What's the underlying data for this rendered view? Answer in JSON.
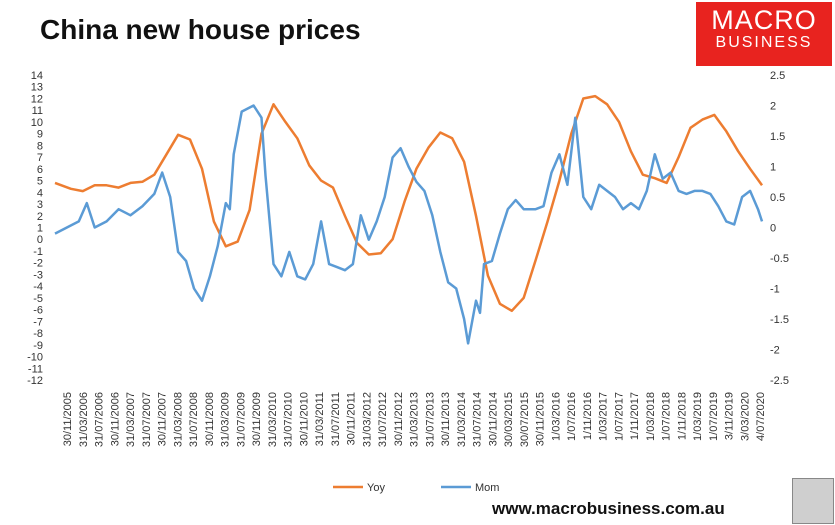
{
  "header": {
    "title": "China new house prices"
  },
  "logo": {
    "line1": "MACRO",
    "line2": "BUSINESS"
  },
  "footer": {
    "url": "www.macrobusiness.com.au"
  },
  "colors": {
    "yoy": "#ed7d31",
    "mom": "#5b9bd5"
  },
  "chart_data": {
    "type": "line",
    "title": "China new house prices",
    "legend_position": "bottom",
    "y_left": {
      "min": -12,
      "max": 14,
      "step": 1
    },
    "y_right": {
      "min": -2.5,
      "max": 2.5,
      "step": 0.5
    },
    "x_tick_labels": [
      "30/11/2005",
      "31/03/2006",
      "31/07/2006",
      "30/11/2006",
      "31/03/2007",
      "31/07/2007",
      "30/11/2007",
      "31/03/2008",
      "31/07/2008",
      "30/11/2008",
      "31/03/2009",
      "31/07/2009",
      "30/11/2009",
      "31/03/2010",
      "31/07/2010",
      "30/11/2010",
      "31/03/2011",
      "31/07/2011",
      "30/11/2011",
      "31/03/2012",
      "31/07/2012",
      "30/11/2012",
      "31/03/2013",
      "31/07/2013",
      "30/11/2013",
      "31/03/2014",
      "31/07/2014",
      "30/11/2014",
      "30/03/2015",
      "30/07/2015",
      "30/11/2015",
      "1/03/2016",
      "1/07/2016",
      "1/11/2016",
      "1/03/2017",
      "1/07/2017",
      "1/11/2017",
      "1/03/2018",
      "1/07/2018",
      "1/11/2018",
      "1/03/2019",
      "1/07/2019",
      "3/11/2019",
      "3/03/2020",
      "4/07/2020"
    ],
    "x_range": [
      "2005-11",
      "2020-09"
    ],
    "series": [
      {
        "name": "Yoy",
        "axis": "left",
        "points": [
          [
            "2005-11",
            4.8
          ],
          [
            "2006-03",
            4.3
          ],
          [
            "2006-06",
            4.1
          ],
          [
            "2006-09",
            4.6
          ],
          [
            "2006-12",
            4.6
          ],
          [
            "2007-03",
            4.4
          ],
          [
            "2007-06",
            4.8
          ],
          [
            "2007-09",
            4.9
          ],
          [
            "2007-12",
            5.5
          ],
          [
            "2008-03",
            7.2
          ],
          [
            "2008-06",
            8.9
          ],
          [
            "2008-09",
            8.5
          ],
          [
            "2008-12",
            6.0
          ],
          [
            "2009-03",
            1.5
          ],
          [
            "2009-06",
            -0.6
          ],
          [
            "2009-09",
            -0.2
          ],
          [
            "2009-12",
            2.5
          ],
          [
            "2010-03",
            9.0
          ],
          [
            "2010-06",
            11.5
          ],
          [
            "2010-09",
            10.0
          ],
          [
            "2010-12",
            8.6
          ],
          [
            "2011-03",
            6.3
          ],
          [
            "2011-06",
            5.0
          ],
          [
            "2011-09",
            4.4
          ],
          [
            "2011-12",
            2.0
          ],
          [
            "2012-03",
            -0.3
          ],
          [
            "2012-06",
            -1.3
          ],
          [
            "2012-09",
            -1.2
          ],
          [
            "2012-12",
            0.0
          ],
          [
            "2013-03",
            3.2
          ],
          [
            "2013-06",
            6.0
          ],
          [
            "2013-09",
            7.8
          ],
          [
            "2013-12",
            9.1
          ],
          [
            "2014-03",
            8.6
          ],
          [
            "2014-06",
            6.6
          ],
          [
            "2014-09",
            2.0
          ],
          [
            "2014-12",
            -3.1
          ],
          [
            "2015-03",
            -5.5
          ],
          [
            "2015-06",
            -6.1
          ],
          [
            "2015-09",
            -5.0
          ],
          [
            "2015-12",
            -1.8
          ],
          [
            "2016-03",
            1.5
          ],
          [
            "2016-06",
            5.0
          ],
          [
            "2016-09",
            9.0
          ],
          [
            "2016-12",
            12.0
          ],
          [
            "2017-03",
            12.2
          ],
          [
            "2017-06",
            11.5
          ],
          [
            "2017-09",
            10.0
          ],
          [
            "2017-12",
            7.5
          ],
          [
            "2018-03",
            5.5
          ],
          [
            "2018-06",
            5.2
          ],
          [
            "2018-09",
            4.8
          ],
          [
            "2018-12",
            7.0
          ],
          [
            "2019-03",
            9.5
          ],
          [
            "2019-06",
            10.2
          ],
          [
            "2019-09",
            10.6
          ],
          [
            "2019-12",
            9.2
          ],
          [
            "2020-03",
            7.5
          ],
          [
            "2020-06",
            6.0
          ],
          [
            "2020-09",
            4.6
          ]
        ]
      },
      {
        "name": "Mom",
        "axis": "right",
        "points": [
          [
            "2005-11",
            -0.1
          ],
          [
            "2006-02",
            0.0
          ],
          [
            "2006-05",
            0.1
          ],
          [
            "2006-07",
            0.4
          ],
          [
            "2006-09",
            0.0
          ],
          [
            "2006-12",
            0.1
          ],
          [
            "2007-03",
            0.3
          ],
          [
            "2007-06",
            0.2
          ],
          [
            "2007-09",
            0.35
          ],
          [
            "2007-12",
            0.55
          ],
          [
            "2008-02",
            0.9
          ],
          [
            "2008-04",
            0.5
          ],
          [
            "2008-06",
            -0.4
          ],
          [
            "2008-08",
            -0.55
          ],
          [
            "2008-10",
            -1.0
          ],
          [
            "2008-12",
            -1.2
          ],
          [
            "2009-02",
            -0.8
          ],
          [
            "2009-04",
            -0.3
          ],
          [
            "2009-06",
            0.4
          ],
          [
            "2009-07",
            0.3
          ],
          [
            "2009-08",
            1.2
          ],
          [
            "2009-10",
            1.9
          ],
          [
            "2010-01",
            2.0
          ],
          [
            "2010-03",
            1.8
          ],
          [
            "2010-04",
            0.85
          ],
          [
            "2010-06",
            -0.6
          ],
          [
            "2010-08",
            -0.8
          ],
          [
            "2010-10",
            -0.4
          ],
          [
            "2010-12",
            -0.8
          ],
          [
            "2011-02",
            -0.85
          ],
          [
            "2011-04",
            -0.6
          ],
          [
            "2011-06",
            0.1
          ],
          [
            "2011-08",
            -0.6
          ],
          [
            "2011-10",
            -0.65
          ],
          [
            "2011-12",
            -0.7
          ],
          [
            "2012-02",
            -0.6
          ],
          [
            "2012-04",
            0.2
          ],
          [
            "2012-06",
            -0.2
          ],
          [
            "2012-08",
            0.1
          ],
          [
            "2012-10",
            0.5
          ],
          [
            "2012-12",
            1.15
          ],
          [
            "2013-02",
            1.3
          ],
          [
            "2013-04",
            1.0
          ],
          [
            "2013-06",
            0.75
          ],
          [
            "2013-08",
            0.6
          ],
          [
            "2013-10",
            0.2
          ],
          [
            "2013-12",
            -0.4
          ],
          [
            "2014-02",
            -0.9
          ],
          [
            "2014-04",
            -1.0
          ],
          [
            "2014-06",
            -1.5
          ],
          [
            "2014-07",
            -1.9
          ],
          [
            "2014-09",
            -1.2
          ],
          [
            "2014-10",
            -1.4
          ],
          [
            "2014-11",
            -0.6
          ],
          [
            "2015-01",
            -0.55
          ],
          [
            "2015-03",
            -0.1
          ],
          [
            "2015-05",
            0.3
          ],
          [
            "2015-07",
            0.45
          ],
          [
            "2015-09",
            0.3
          ],
          [
            "2015-12",
            0.3
          ],
          [
            "2016-02",
            0.35
          ],
          [
            "2016-04",
            0.9
          ],
          [
            "2016-06",
            1.2
          ],
          [
            "2016-08",
            0.7
          ],
          [
            "2016-10",
            1.8
          ],
          [
            "2016-12",
            0.5
          ],
          [
            "2017-02",
            0.3
          ],
          [
            "2017-04",
            0.7
          ],
          [
            "2017-06",
            0.6
          ],
          [
            "2017-08",
            0.5
          ],
          [
            "2017-10",
            0.3
          ],
          [
            "2017-12",
            0.4
          ],
          [
            "2018-02",
            0.3
          ],
          [
            "2018-04",
            0.6
          ],
          [
            "2018-06",
            1.2
          ],
          [
            "2018-08",
            0.8
          ],
          [
            "2018-10",
            0.9
          ],
          [
            "2018-12",
            0.6
          ],
          [
            "2019-02",
            0.55
          ],
          [
            "2019-04",
            0.6
          ],
          [
            "2019-06",
            0.6
          ],
          [
            "2019-08",
            0.55
          ],
          [
            "2019-10",
            0.35
          ],
          [
            "2019-12",
            0.1
          ],
          [
            "2020-02",
            0.05
          ],
          [
            "2020-04",
            0.5
          ],
          [
            "2020-06",
            0.6
          ],
          [
            "2020-08",
            0.3
          ],
          [
            "2020-09",
            0.1
          ]
        ]
      }
    ]
  }
}
